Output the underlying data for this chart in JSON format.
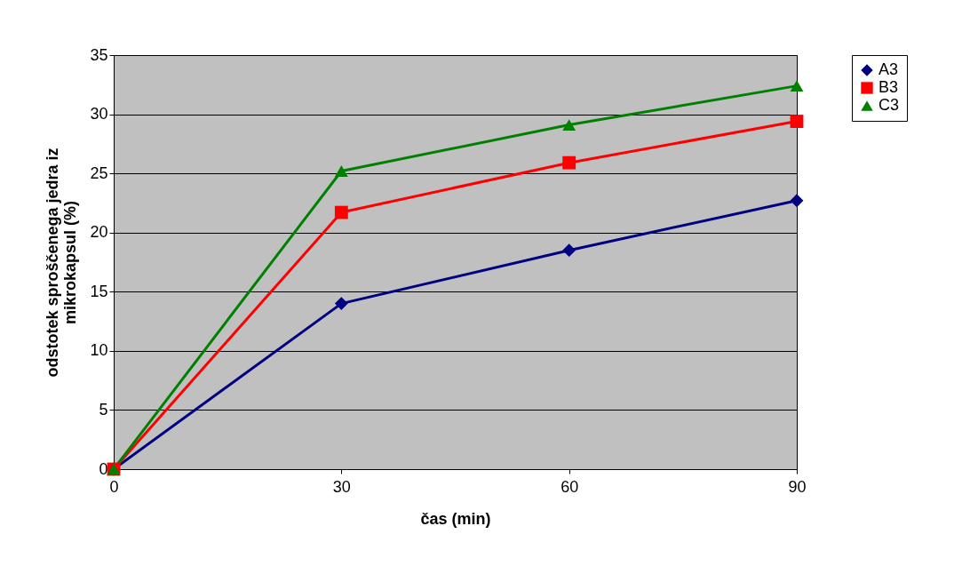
{
  "chart_data": {
    "type": "line",
    "xlabel": "čas (min)",
    "ylabel": "odstotek sproščenega jedra iz\nmikrokapsul (%)",
    "x": [
      0,
      30,
      60,
      90
    ],
    "xlim": [
      0,
      90
    ],
    "xticks": [
      0,
      30,
      60,
      90
    ],
    "ylim": [
      0,
      35
    ],
    "yticks": [
      0,
      5,
      10,
      15,
      20,
      25,
      30,
      35
    ],
    "grid": "y",
    "legend": "right",
    "series": [
      {
        "name": "A3",
        "color": "#000080",
        "marker": "diamond",
        "values": [
          0,
          14.0,
          18.5,
          22.7
        ]
      },
      {
        "name": "B3",
        "color": "#ff0000",
        "marker": "square",
        "values": [
          0,
          21.7,
          25.9,
          29.4
        ]
      },
      {
        "name": "C3",
        "color": "#008000",
        "marker": "triangle",
        "values": [
          0,
          25.2,
          29.1,
          32.4
        ]
      }
    ]
  }
}
